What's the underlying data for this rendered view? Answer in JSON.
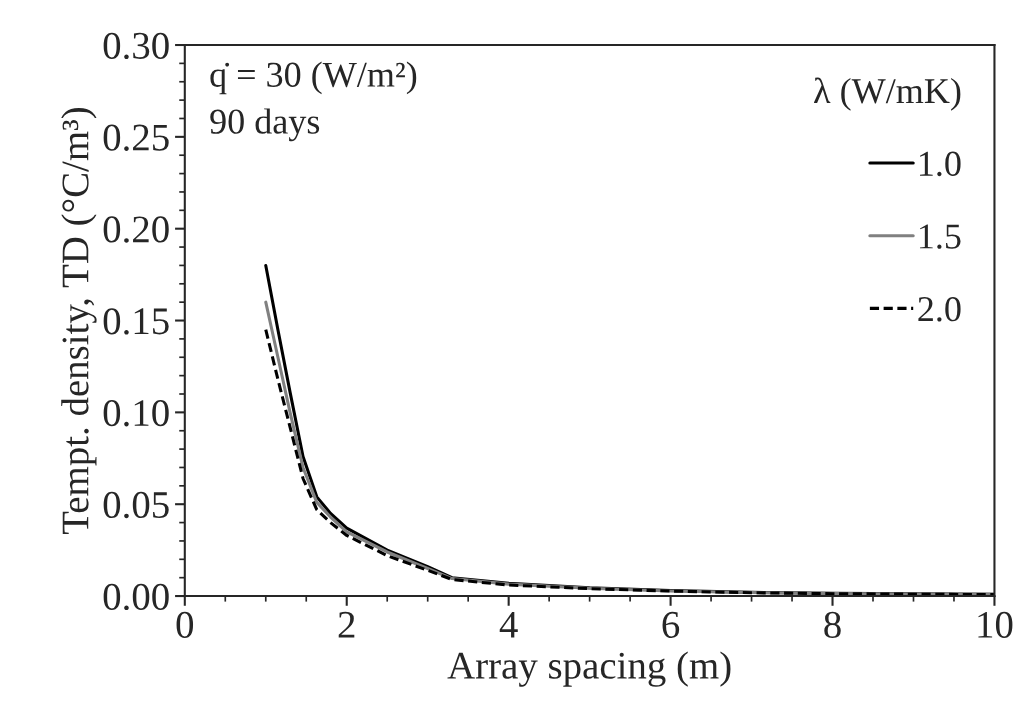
{
  "chart_data": {
    "type": "line",
    "xlabel": "Array spacing (m)",
    "ylabel": "Tempt. density, TD (°C/m³)",
    "legend_title": "λ (W/mK)",
    "legend": "top right",
    "grid": false,
    "annotations": [
      "q̇ = 30 (W/m²)",
      "90 days"
    ],
    "x": [
      1,
      1.15,
      1.3,
      1.46,
      1.63,
      1.8,
      2,
      2.5,
      3,
      3.3,
      4,
      5,
      6,
      7,
      8,
      9,
      10
    ],
    "xlim": [
      0,
      10
    ],
    "xticks": [
      0,
      {
        "value": 0.5,
        "label": null
      },
      2,
      {
        "value": 1,
        "label": null
      },
      {
        "value": 1.5,
        "label": null
      },
      {
        "value": 2.5,
        "label": null
      },
      {
        "value": 3,
        "label": null
      },
      {
        "value": 3.5,
        "label": null
      },
      4,
      {
        "value": 4.5,
        "label": null
      },
      {
        "value": 5,
        "label": null
      },
      {
        "value": 5.5,
        "label": null
      },
      6,
      {
        "value": 6.5,
        "label": null
      },
      {
        "value": 7,
        "label": null
      },
      {
        "value": 7.5,
        "label": null
      },
      8,
      {
        "value": 8.5,
        "label": null
      },
      {
        "value": 9,
        "label": null
      },
      {
        "value": 9.5,
        "label": null
      },
      10
    ],
    "ylim": [
      0,
      0.3
    ],
    "yticks": [
      {
        "value": 0,
        "label": "0.00"
      },
      {
        "value": 0.05,
        "label": "0.05"
      },
      {
        "value": 0.1,
        "label": "0.10"
      },
      {
        "value": 0.15,
        "label": "0.15"
      },
      {
        "value": 0.2,
        "label": "0.20"
      },
      {
        "value": 0.25,
        "label": "0.25"
      },
      {
        "value": 0.3,
        "label": "0.30"
      },
      {
        "value": 0.01,
        "label": null
      },
      {
        "value": 0.02,
        "label": null
      },
      {
        "value": 0.03,
        "label": null
      },
      {
        "value": 0.04,
        "label": null
      },
      {
        "value": 0.06,
        "label": null
      },
      {
        "value": 0.07,
        "label": null
      },
      {
        "value": 0.08,
        "label": null
      },
      {
        "value": 0.09,
        "label": null
      },
      {
        "value": 0.11,
        "label": null
      },
      {
        "value": 0.12,
        "label": null
      },
      {
        "value": 0.13,
        "label": null
      },
      {
        "value": 0.14,
        "label": null
      },
      {
        "value": 0.16,
        "label": null
      },
      {
        "value": 0.17,
        "label": null
      },
      {
        "value": 0.18,
        "label": null
      },
      {
        "value": 0.19,
        "label": null
      },
      {
        "value": 0.21,
        "label": null
      },
      {
        "value": 0.22,
        "label": null
      },
      {
        "value": 0.23,
        "label": null
      },
      {
        "value": 0.24,
        "label": null
      },
      {
        "value": 0.26,
        "label": null
      },
      {
        "value": 0.27,
        "label": null
      },
      {
        "value": 0.28,
        "label": null
      },
      {
        "value": 0.29,
        "label": null
      }
    ],
    "series": [
      {
        "name": "1.0",
        "color": "#000000",
        "line_style": "solid",
        "values": [
          0.18,
          0.145,
          0.111,
          0.076,
          0.054,
          0.045,
          0.037,
          0.025,
          0.016,
          0.01,
          0.007,
          0.0045,
          0.003,
          0.002,
          0.0015,
          0.0012,
          0.001
        ]
      },
      {
        "name": "1.5",
        "color": "#808080",
        "line_style": "solid",
        "values": [
          0.16,
          0.13,
          0.1,
          0.07,
          0.051,
          0.043,
          0.035,
          0.024,
          0.015,
          0.0095,
          0.0065,
          0.0042,
          0.0028,
          0.0019,
          0.0014,
          0.0011,
          0.0009
        ]
      },
      {
        "name": "2.0",
        "color": "#000000",
        "line_style": "dashed",
        "values": [
          0.145,
          0.118,
          0.092,
          0.064,
          0.047,
          0.04,
          0.033,
          0.022,
          0.014,
          0.009,
          0.006,
          0.004,
          0.0027,
          0.0018,
          0.0013,
          0.001,
          0.0008
        ]
      }
    ]
  }
}
